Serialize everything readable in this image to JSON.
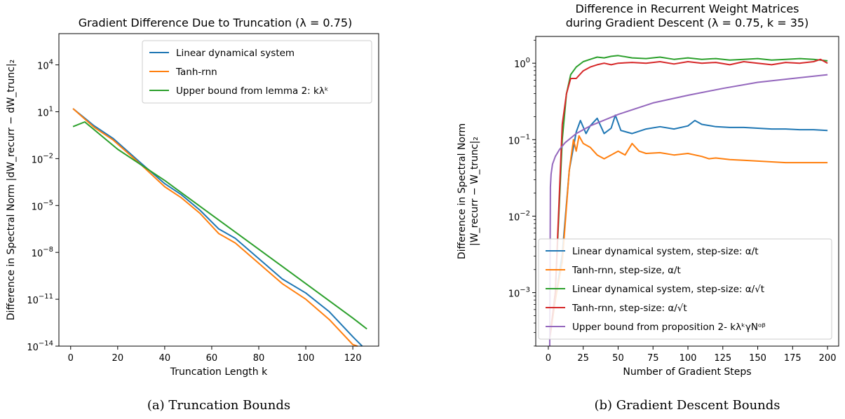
{
  "chart_data": [
    {
      "type": "line",
      "panel": "a",
      "title": "Gradient Difference Due to Truncation (λ = 0.75)",
      "xlabel": "Truncation Length k",
      "ylabel": "Difference in Spectral Norm |dW_recurr − dW_trunc|₂",
      "caption": "(a) Truncation Bounds",
      "y_scale": "log",
      "xlim": [
        -5,
        131
      ],
      "ylim_log10": [
        -14,
        6
      ],
      "x_ticks": [
        0,
        20,
        40,
        60,
        80,
        100,
        120
      ],
      "y_ticks": [
        {
          "label": "10",
          "exp": "4"
        },
        {
          "label": "10",
          "exp": "1"
        },
        {
          "label": "10",
          "exp": "−2"
        },
        {
          "label": "10",
          "exp": "−5"
        },
        {
          "label": "10",
          "exp": "−8"
        },
        {
          "label": "10",
          "exp": "−11"
        },
        {
          "label": "10",
          "exp": "−14"
        }
      ],
      "legend_position": "upper right",
      "series": [
        {
          "name": "Linear dynamical system",
          "color": "#1f77b4",
          "x": [
            1,
            10,
            18,
            30,
            40,
            47,
            55,
            63,
            70,
            80,
            90,
            100,
            110,
            120,
            124
          ],
          "log10_y": [
            1.2,
            0.1,
            -0.7,
            -2.3,
            -3.6,
            -4.3,
            -5.3,
            -6.5,
            -7.1,
            -8.4,
            -9.7,
            -10.6,
            -11.8,
            -13.4,
            -14.0
          ]
        },
        {
          "name": "Tanh-rnn",
          "color": "#ff7f0e",
          "x": [
            1,
            10,
            18,
            30,
            40,
            47,
            55,
            63,
            70,
            80,
            90,
            100,
            110,
            120,
            122
          ],
          "log10_y": [
            1.2,
            0.0,
            -0.8,
            -2.4,
            -3.8,
            -4.5,
            -5.5,
            -6.8,
            -7.4,
            -8.7,
            -10.0,
            -11.0,
            -12.3,
            -13.9,
            -14.0
          ]
        },
        {
          "name": "Upper bound from lemma 2: kλᵏ",
          "color": "#2ca02c",
          "x": [
            1,
            6,
            20,
            40,
            60,
            80,
            100,
            120,
            126
          ],
          "log10_y": [
            0.05,
            0.35,
            -1.4,
            -3.4,
            -5.6,
            -7.8,
            -10.0,
            -12.2,
            -12.9
          ]
        }
      ]
    },
    {
      "type": "line",
      "panel": "b",
      "title": "Difference in Recurrent Weight Matrices",
      "title_line2": "during Gradient Descent (λ = 0.75, k = 35)",
      "xlabel": "Number of Gradient Steps",
      "ylabel": "Difference in Spectral Norm",
      "ylabel_line2": "|W_recurr − W_trunc|₂",
      "caption": "(b) Gradient Descent Bounds",
      "y_scale": "log",
      "xlim": [
        -9,
        208
      ],
      "ylim_log10": [
        -3.7,
        0.35
      ],
      "x_ticks": [
        0,
        25,
        50,
        75,
        100,
        125,
        150,
        175,
        200
      ],
      "y_ticks": [
        {
          "label": "10",
          "exp": "0"
        },
        {
          "label": "10",
          "exp": "−1"
        },
        {
          "label": "10",
          "exp": "−2"
        },
        {
          "label": "10",
          "exp": "−3"
        }
      ],
      "legend_position": "lower right",
      "series": [
        {
          "name": "Linear dynamical system, step-size: α/t",
          "color": "#1f77b4",
          "x": [
            1,
            5,
            10,
            15,
            20,
            23,
            27,
            30,
            35,
            40,
            45,
            48,
            52,
            60,
            70,
            80,
            90,
            100,
            105,
            110,
            120,
            130,
            140,
            150,
            160,
            170,
            180,
            190,
            200
          ],
          "log10_y": [
            -3.6,
            -3.1,
            -2.5,
            -1.4,
            -0.9,
            -0.75,
            -0.92,
            -0.82,
            -0.72,
            -0.92,
            -0.85,
            -0.68,
            -0.88,
            -0.92,
            -0.86,
            -0.83,
            -0.86,
            -0.82,
            -0.75,
            -0.8,
            -0.83,
            -0.84,
            -0.84,
            -0.85,
            -0.86,
            -0.86,
            -0.87,
            -0.87,
            -0.88
          ]
        },
        {
          "name": "Tanh-rnn, step-size,  α/t",
          "color": "#ff7f0e",
          "x": [
            1,
            5,
            10,
            15,
            18,
            20,
            22,
            25,
            30,
            35,
            40,
            45,
            50,
            55,
            60,
            65,
            70,
            80,
            90,
            100,
            110,
            115,
            120,
            130,
            140,
            150,
            160,
            170,
            180,
            190,
            200
          ],
          "log10_y": [
            -3.6,
            -3.1,
            -2.6,
            -1.4,
            -1.0,
            -1.15,
            -0.95,
            -1.05,
            -1.1,
            -1.2,
            -1.25,
            -1.2,
            -1.15,
            -1.2,
            -1.05,
            -1.15,
            -1.18,
            -1.17,
            -1.2,
            -1.18,
            -1.22,
            -1.25,
            -1.24,
            -1.26,
            -1.27,
            -1.28,
            -1.29,
            -1.3,
            -1.3,
            -1.3,
            -1.3
          ]
        },
        {
          "name": "Linear dynamical system, step-size: α/√t",
          "color": "#2ca02c",
          "x": [
            1,
            5,
            10,
            13,
            16,
            20,
            25,
            30,
            35,
            40,
            45,
            50,
            60,
            70,
            80,
            90,
            100,
            110,
            120,
            130,
            140,
            150,
            160,
            170,
            180,
            190,
            200
          ],
          "log10_y": [
            -3.6,
            -3.0,
            -1.0,
            -0.4,
            -0.15,
            -0.05,
            0.02,
            0.05,
            0.08,
            0.07,
            0.09,
            0.1,
            0.07,
            0.06,
            0.08,
            0.05,
            0.07,
            0.05,
            0.06,
            0.04,
            0.05,
            0.06,
            0.04,
            0.05,
            0.06,
            0.05,
            0.03
          ]
        },
        {
          "name": "Tanh-rnn, step-size: α/√t",
          "color": "#d62728",
          "x": [
            1,
            5,
            10,
            13,
            16,
            20,
            25,
            30,
            35,
            40,
            45,
            50,
            60,
            70,
            80,
            90,
            100,
            110,
            120,
            130,
            140,
            150,
            160,
            170,
            180,
            190,
            195,
            200
          ],
          "log10_y": [
            -3.6,
            -3.0,
            -0.8,
            -0.4,
            -0.2,
            -0.2,
            -0.1,
            -0.05,
            -0.02,
            0.0,
            -0.02,
            0.0,
            0.01,
            0.0,
            0.02,
            -0.01,
            0.02,
            0.0,
            0.01,
            -0.02,
            0.02,
            0.0,
            -0.02,
            0.01,
            0.0,
            0.02,
            0.05,
            0.0
          ]
        },
        {
          "name": "Upper bound from proposition 2- kλᵏγNᵅᵝ",
          "color": "#9467bd",
          "x": [
            1,
            1.5,
            2,
            3,
            5,
            8,
            12,
            20,
            30,
            50,
            75,
            100,
            125,
            150,
            175,
            200
          ],
          "log10_y": [
            -3.7,
            -1.62,
            -1.45,
            -1.32,
            -1.22,
            -1.13,
            -1.04,
            -0.92,
            -0.82,
            -0.67,
            -0.52,
            -0.42,
            -0.33,
            -0.25,
            -0.2,
            -0.15
          ]
        }
      ]
    }
  ]
}
